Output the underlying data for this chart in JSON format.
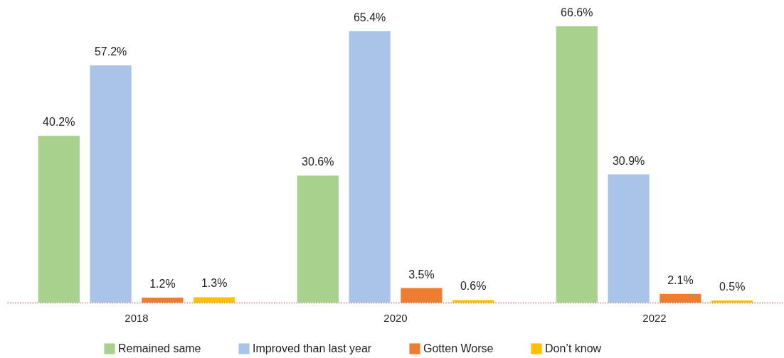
{
  "chart_data": {
    "type": "bar",
    "categories": [
      "2018",
      "2020",
      "2022"
    ],
    "series": [
      {
        "name": "Remained same",
        "color": "#a9d18e",
        "values": [
          40.2,
          30.6,
          66.6
        ],
        "value_labels": [
          "40.2%",
          "30.6%",
          "66.6%"
        ]
      },
      {
        "name": "Improved than last year",
        "color": "#a9c4e8",
        "values": [
          57.2,
          65.4,
          30.9
        ],
        "value_labels": [
          "57.2%",
          "65.4%",
          "30.9%"
        ]
      },
      {
        "name": "Gotten Worse",
        "color": "#ed7d31",
        "values": [
          1.2,
          3.5,
          2.1
        ],
        "value_labels": [
          "1.2%",
          "3.5%",
          "2.1%"
        ]
      },
      {
        "name": "Don’t know",
        "color": "#ffc000",
        "values": [
          1.3,
          0.6,
          0.5
        ],
        "value_labels": [
          "1.3%",
          "0.6%",
          "0.5%"
        ]
      }
    ],
    "legend": "bottom"
  }
}
